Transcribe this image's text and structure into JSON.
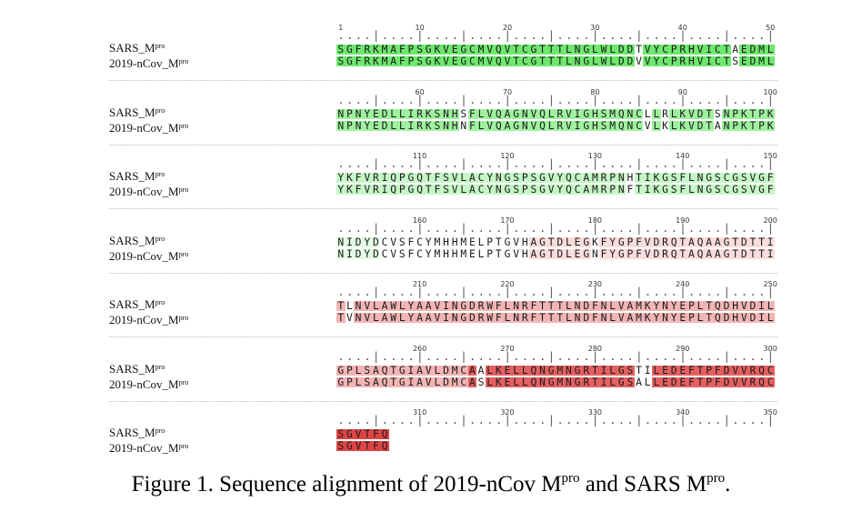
{
  "caption": {
    "prefix": "Figure 1. Sequence alignment of 2019-nCov M",
    "sup1": "pro",
    "middle": " and SARS M",
    "sup2": "pro",
    "suffix": "."
  },
  "sequences": [
    {
      "name": "SARS_M",
      "sup": "pro",
      "seq": "SGFRKMAFPSGKVEGCMVQVTCGTTTLNGLWLDDTVYCPRHVICTAEDMLNPNYEDLLIRKSNHSFLVQAGNVQLRVIGHSMQNCLLRLKVDTSNPKTPKYKFVRIQPGQTFSVLACYNGSPSGVYQCAMRPNHTIKGSFLNGSCGSVGFNIDYDCVSFCYMHHMELPTGVHAGTDLEGKFYGPFVDRQTAQAAGTDTTITLNVLAWLYAAVINGDRWFLNRFTTTLNDFNLVAMKYNYEPLTQDHVDILGPLSAQTGIAVLDMCAALKELLQNGMNGRTILGSTILEDEFTPFDVVRQCSGVTFQ"
    },
    {
      "name": "2019-nCov_M",
      "sup": "pro",
      "seq": "SGFRKMAFPSGKVEGCMVQVTCGTTTLNGLWLDDVVYCPRHVICTSEDMLNPNYEDLLIRKSNHNFLVQAGNVQLRVIGHSMQNCVLKLKVDTANPKTPKYKFVRIQPGQTFSVLACYNGSPSGVYQCAMRPNFTIKGSFLNGSCGSVGFNIDYDCVSFCYMHHMELPTGVHAGTDLEGNFYGPFVDRQTAQAAGTDTTITVNVLAWLYAAVINGDRWFLNRFTTTLNDFNLVAMKYNYEPLTQDHVDILGPLSAQTGIAVLDMCASLKELLQNGMNGRTILGSALLEDEFTPFDVVRQCSGVTFQ"
    }
  ],
  "ruler_numbers": [
    [
      "1",
      "10",
      "20",
      "30",
      "40",
      "50"
    ],
    [
      "60",
      "70",
      "80",
      "90",
      "100"
    ],
    [
      "110",
      "120",
      "130",
      "140",
      "150"
    ],
    [
      "160",
      "170",
      "180",
      "190",
      "200"
    ],
    [
      "210",
      "220",
      "230",
      "240",
      "250"
    ],
    [
      "260",
      "270",
      "280",
      "290",
      "300"
    ],
    [
      "310",
      "320",
      "330",
      "340",
      "350"
    ]
  ],
  "colors": {
    "green_strong": "#6ee86e",
    "green_mid": "#9ef29e",
    "green_light": "#c6f7c6",
    "green_pale": "#e3fbe3",
    "red_pale": "#fadcdc",
    "red_light": "#f2b4b4",
    "red_mid": "#ea8a8a",
    "red_strong": "#e46060",
    "red_deep": "#de4444",
    "mismatch": "#ffffff"
  },
  "shading": [
    {
      "start": 1,
      "end": 50,
      "color": "green_strong"
    },
    {
      "start": 51,
      "end": 100,
      "color": "green_mid"
    },
    {
      "start": 101,
      "end": 150,
      "color": "green_light"
    },
    {
      "start": 151,
      "end": 155,
      "color": "green_pale"
    },
    {
      "start": 173,
      "end": 200,
      "color": "red_pale"
    },
    {
      "start": 201,
      "end": 250,
      "color": "red_light"
    },
    {
      "start": 251,
      "end": 265,
      "color": "red_light"
    },
    {
      "start": 266,
      "end": 300,
      "color": "red_strong"
    },
    {
      "start": 301,
      "end": 306,
      "color": "red_deep"
    }
  ]
}
